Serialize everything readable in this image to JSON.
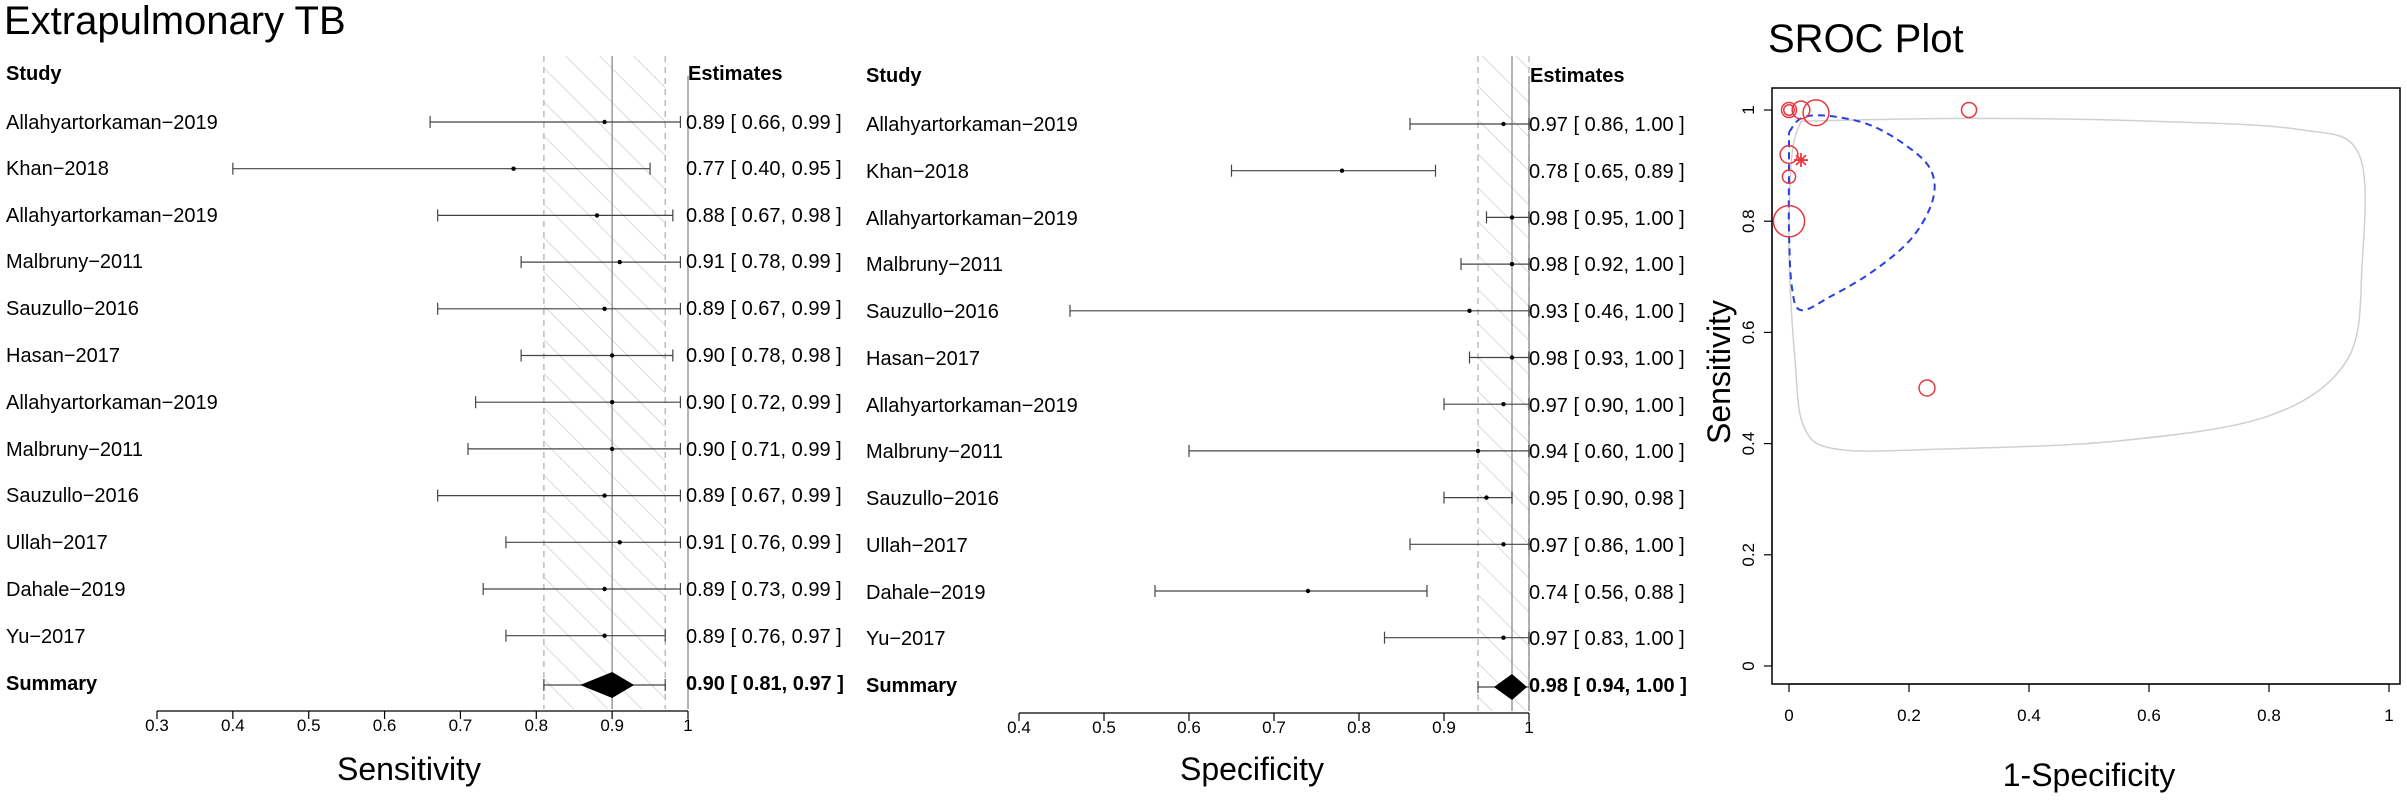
{
  "figure_title": "Extrapulmonary TB",
  "chart_data": [
    {
      "type": "forest",
      "measure": "Sensitivity",
      "xlabel": "Sensitivity",
      "xlim": [
        0.3,
        1.0
      ],
      "xticks": [
        0.3,
        0.4,
        0.5,
        0.6,
        0.7,
        0.8,
        0.9,
        1.0
      ],
      "study_header": "Study",
      "estimates_header": "Estimates",
      "studies": [
        {
          "name": "Allahyartorkaman−2019",
          "est": 0.89,
          "lo": 0.66,
          "hi": 0.99,
          "label": "0.89 [ 0.66, 0.99 ]"
        },
        {
          "name": "Khan−2018",
          "est": 0.77,
          "lo": 0.4,
          "hi": 0.95,
          "label": "0.77 [ 0.40, 0.95 ]"
        },
        {
          "name": "Allahyartorkaman−2019",
          "est": 0.88,
          "lo": 0.67,
          "hi": 0.98,
          "label": "0.88 [ 0.67, 0.98 ]"
        },
        {
          "name": "Malbruny−2011",
          "est": 0.91,
          "lo": 0.78,
          "hi": 0.99,
          "label": "0.91 [ 0.78, 0.99 ]"
        },
        {
          "name": "Sauzullo−2016",
          "est": 0.89,
          "lo": 0.67,
          "hi": 0.99,
          "label": "0.89 [ 0.67, 0.99 ]"
        },
        {
          "name": "Hasan−2017",
          "est": 0.9,
          "lo": 0.78,
          "hi": 0.98,
          "label": "0.90 [ 0.78, 0.98 ]"
        },
        {
          "name": "Allahyartorkaman−2019",
          "est": 0.9,
          "lo": 0.72,
          "hi": 0.99,
          "label": "0.90 [ 0.72, 0.99 ]"
        },
        {
          "name": "Malbruny−2011",
          "est": 0.9,
          "lo": 0.71,
          "hi": 0.99,
          "label": "0.90 [ 0.71, 0.99 ]"
        },
        {
          "name": "Sauzullo−2016",
          "est": 0.89,
          "lo": 0.67,
          "hi": 0.99,
          "label": "0.89 [ 0.67, 0.99 ]"
        },
        {
          "name": "Ullah−2017",
          "est": 0.91,
          "lo": 0.76,
          "hi": 0.99,
          "label": "0.91 [ 0.76, 0.99 ]"
        },
        {
          "name": "Dahale−2019",
          "est": 0.89,
          "lo": 0.73,
          "hi": 0.99,
          "label": "0.89 [ 0.73, 0.99 ]"
        },
        {
          "name": "Yu−2017",
          "est": 0.89,
          "lo": 0.76,
          "hi": 0.97,
          "label": "0.89 [ 0.76, 0.97 ]"
        }
      ],
      "summary": {
        "name": "Summary",
        "est": 0.9,
        "lo": 0.81,
        "hi": 0.97,
        "label": "0.90 [ 0.81, 0.97 ]"
      }
    },
    {
      "type": "forest",
      "measure": "Specificity",
      "xlabel": "Specificity",
      "xlim": [
        0.4,
        1.0
      ],
      "xticks": [
        0.4,
        0.5,
        0.6,
        0.7,
        0.8,
        0.9,
        1.0
      ],
      "study_header": "Study",
      "estimates_header": "Estimates",
      "studies": [
        {
          "name": "Allahyartorkaman−2019",
          "est": 0.97,
          "lo": 0.86,
          "hi": 1.0,
          "label": "0.97 [ 0.86, 1.00 ]"
        },
        {
          "name": "Khan−2018",
          "est": 0.78,
          "lo": 0.65,
          "hi": 0.89,
          "label": "0.78 [ 0.65, 0.89 ]"
        },
        {
          "name": "Allahyartorkaman−2019",
          "est": 0.98,
          "lo": 0.95,
          "hi": 1.0,
          "label": "0.98 [ 0.95, 1.00 ]"
        },
        {
          "name": "Malbruny−2011",
          "est": 0.98,
          "lo": 0.92,
          "hi": 1.0,
          "label": "0.98 [ 0.92, 1.00 ]"
        },
        {
          "name": "Sauzullo−2016",
          "est": 0.93,
          "lo": 0.46,
          "hi": 1.0,
          "label": "0.93 [ 0.46, 1.00 ]"
        },
        {
          "name": "Hasan−2017",
          "est": 0.98,
          "lo": 0.93,
          "hi": 1.0,
          "label": "0.98 [ 0.93, 1.00 ]"
        },
        {
          "name": "Allahyartorkaman−2019",
          "est": 0.97,
          "lo": 0.9,
          "hi": 1.0,
          "label": "0.97 [ 0.90, 1.00 ]"
        },
        {
          "name": "Malbruny−2011",
          "est": 0.94,
          "lo": 0.6,
          "hi": 1.0,
          "label": "0.94 [ 0.60, 1.00 ]"
        },
        {
          "name": "Sauzullo−2016",
          "est": 0.95,
          "lo": 0.9,
          "hi": 0.98,
          "label": "0.95 [ 0.90, 0.98 ]"
        },
        {
          "name": "Ullah−2017",
          "est": 0.97,
          "lo": 0.86,
          "hi": 1.0,
          "label": "0.97 [ 0.86, 1.00 ]"
        },
        {
          "name": "Dahale−2019",
          "est": 0.74,
          "lo": 0.56,
          "hi": 0.88,
          "label": "0.74 [ 0.56, 0.88 ]"
        },
        {
          "name": "Yu−2017",
          "est": 0.97,
          "lo": 0.83,
          "hi": 1.0,
          "label": "0.97 [ 0.83, 1.00 ]"
        }
      ],
      "summary": {
        "name": "Summary",
        "est": 0.98,
        "lo": 0.94,
        "hi": 1.0,
        "label": "0.98 [ 0.94, 1.00 ]"
      }
    },
    {
      "type": "scatter",
      "title": "SROC Plot",
      "xlabel": "1-Specificity",
      "ylabel": "Sensitivity",
      "xlim": [
        0,
        1
      ],
      "ylim": [
        0,
        1
      ],
      "xticks": [
        0,
        0.2,
        0.4,
        0.6,
        0.8,
        1
      ],
      "yticks": [
        0,
        0.2,
        0.4,
        0.6,
        0.8,
        1
      ],
      "study_points": [
        {
          "x": 0.0,
          "y": 1.0,
          "weight": 1.0
        },
        {
          "x": 0.0,
          "y": 1.0,
          "weight": 0.5
        },
        {
          "x": 0.02,
          "y": 1.0,
          "weight": 1.3
        },
        {
          "x": 0.045,
          "y": 0.995,
          "weight": 2.2
        },
        {
          "x": 0.3,
          "y": 1.0,
          "weight": 1.0
        },
        {
          "x": 0.0,
          "y": 0.92,
          "weight": 1.3
        },
        {
          "x": 0.0,
          "y": 0.88,
          "weight": 0.8
        },
        {
          "x": 0.0,
          "y": 0.8,
          "weight": 2.8
        },
        {
          "x": 0.23,
          "y": 0.5,
          "weight": 1.1
        }
      ],
      "summary_point": {
        "x": 0.02,
        "y": 0.91
      },
      "confidence_region": [
        [
          0.0,
          0.96
        ],
        [
          0.02,
          0.985
        ],
        [
          0.06,
          0.99
        ],
        [
          0.13,
          0.975
        ],
        [
          0.19,
          0.94
        ],
        [
          0.235,
          0.895
        ],
        [
          0.24,
          0.84
        ],
        [
          0.205,
          0.77
        ],
        [
          0.14,
          0.71
        ],
        [
          0.07,
          0.665
        ],
        [
          0.02,
          0.64
        ],
        [
          0.005,
          0.68
        ],
        [
          0.0,
          0.78
        ],
        [
          0.0,
          0.9
        ],
        [
          0.0,
          0.96
        ]
      ],
      "prediction_region": [
        [
          0.02,
          0.98
        ],
        [
          0.3,
          0.985
        ],
        [
          0.6,
          0.98
        ],
        [
          0.85,
          0.965
        ],
        [
          0.95,
          0.92
        ],
        [
          0.955,
          0.72
        ],
        [
          0.93,
          0.55
        ],
        [
          0.8,
          0.45
        ],
        [
          0.55,
          0.405
        ],
        [
          0.25,
          0.39
        ],
        [
          0.08,
          0.39
        ],
        [
          0.025,
          0.43
        ],
        [
          0.01,
          0.55
        ],
        [
          0.0,
          0.75
        ],
        [
          0.005,
          0.92
        ],
        [
          0.02,
          0.98
        ]
      ],
      "colors": {
        "points": "#e8383f",
        "confidence": "#2a3fe0",
        "prediction": "#d0d0d0"
      }
    }
  ]
}
